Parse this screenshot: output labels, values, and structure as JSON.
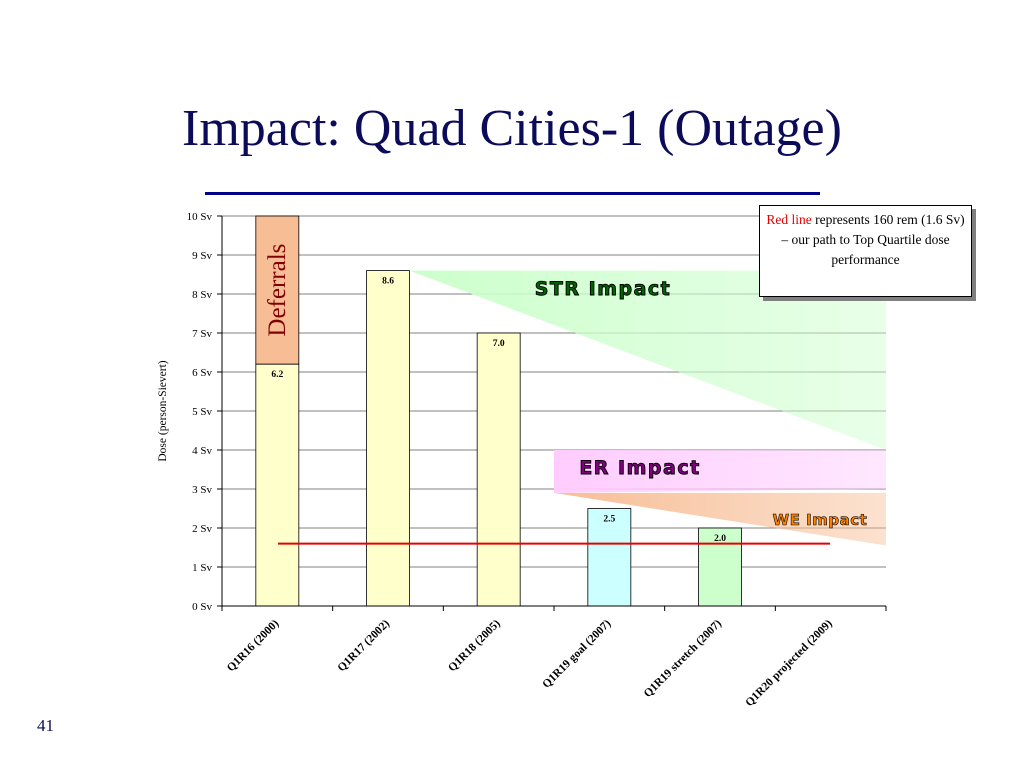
{
  "slide": {
    "title": "Impact: Quad Cities-1 (Outage)",
    "page_number": "41"
  },
  "note": {
    "red_text": "Red line",
    "rest_text": " represents 160 rem (1.6 Sv) – our path to Top Quartile dose performance"
  },
  "colors": {
    "title": "#0b0b5a",
    "rule": "#00008b",
    "bar_yellow": "#ffffcc",
    "bar_cyan": "#ccffff",
    "bar_green": "#ccffcc",
    "deferrals": "#f7be96",
    "str_band": "#ccffcc",
    "er_band": "#ffccff",
    "we_band": "#f7be96",
    "target_line": "#e60000"
  },
  "chart_data": {
    "type": "bar",
    "categories": [
      "Q1R16 (2000)",
      "Q1R17 (2002)",
      "Q1R18 (2005)",
      "Q1R19 goal (2007)",
      "Q1R19 stretch (2007)",
      "Q1R20 projected (2009)"
    ],
    "values": [
      6.2,
      8.6,
      7.0,
      2.5,
      2.0,
      null
    ],
    "value_labels": [
      "6.2",
      "8.6",
      "7.0",
      "2.5",
      "2.0",
      ""
    ],
    "bar_colors": [
      "#ffffcc",
      "#ffffcc",
      "#ffffcc",
      "#ccffff",
      "#ccffcc",
      ""
    ],
    "ylabel": "Dose (person-Sievert)",
    "ylim": [
      0,
      10
    ],
    "yticks": [
      0,
      1,
      2,
      3,
      4,
      5,
      6,
      7,
      8,
      9,
      10
    ],
    "ytick_labels": [
      "0 Sv",
      "1 Sv",
      "2 Sv",
      "3 Sv",
      "4 Sv",
      "5 Sv",
      "6 Sv",
      "7 Sv",
      "8 Sv",
      "9 Sv",
      "10 Sv"
    ],
    "grid": true,
    "deferrals": {
      "label": "Deferrals",
      "bar_index": 0,
      "from": 6.2,
      "to": 10
    },
    "target_line": {
      "value": 1.6
    },
    "impact_bands": [
      {
        "label": "STR Impact",
        "from_index": 1,
        "top": 8.6,
        "bottom_left": 8.6,
        "bottom_right": 4.0,
        "color": "#ccffcc",
        "text_color": "#006400"
      },
      {
        "label": "ER Impact",
        "from_index": 2.5,
        "top": 4.0,
        "bottom_left": 2.9,
        "bottom_right": 3.0,
        "color": "#ffccff",
        "text_color": "#800080"
      },
      {
        "label": "WE Impact",
        "from_index": 2.5,
        "top": 2.9,
        "bottom_left": 2.9,
        "bottom_right": 1.55,
        "color": "#f7be96",
        "text_color": "#ff8000"
      }
    ]
  }
}
